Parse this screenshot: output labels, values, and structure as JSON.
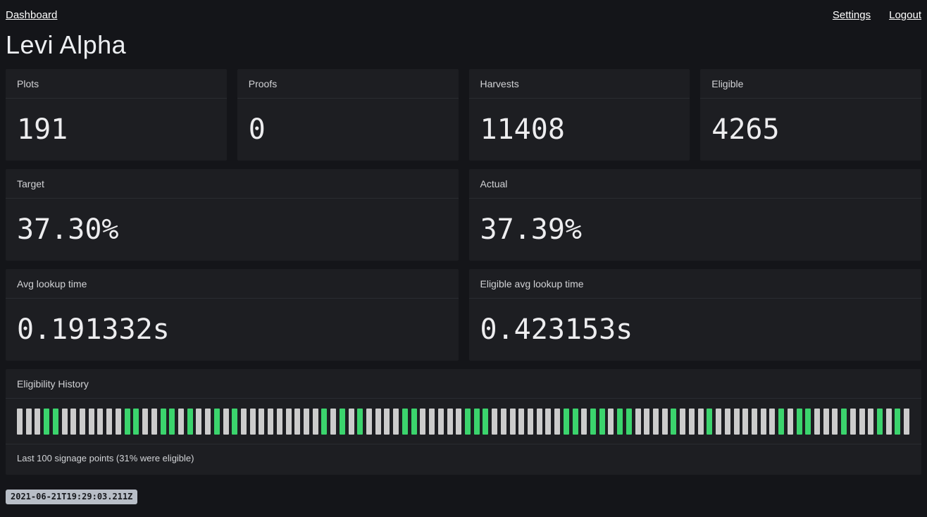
{
  "nav": {
    "dashboard_label": "Dashboard",
    "settings_label": "Settings",
    "logout_label": "Logout"
  },
  "page_title": "Levi Alpha",
  "stats": [
    {
      "label": "Plots",
      "value": "191"
    },
    {
      "label": "Proofs",
      "value": "0"
    },
    {
      "label": "Harvests",
      "value": "11408"
    },
    {
      "label": "Eligible",
      "value": "4265"
    }
  ],
  "ratios": [
    {
      "label": "Target",
      "value": "37.30%"
    },
    {
      "label": "Actual",
      "value": "37.39%"
    }
  ],
  "lookup": [
    {
      "label": "Avg lookup time",
      "value": "0.191332s"
    },
    {
      "label": "Eligible avg lookup time",
      "value": "0.423153s"
    }
  ],
  "history": {
    "title": "Eligibility History",
    "caption": "Last 100 signage points (31% were eligible)",
    "eligible_color": "#3bd46d",
    "ineligible_color": "#cccccc",
    "bars": [
      0,
      0,
      0,
      1,
      1,
      0,
      0,
      0,
      0,
      0,
      0,
      0,
      1,
      1,
      0,
      0,
      1,
      1,
      0,
      1,
      0,
      0,
      1,
      0,
      1,
      0,
      0,
      0,
      0,
      0,
      0,
      0,
      0,
      0,
      1,
      0,
      1,
      0,
      1,
      0,
      0,
      0,
      0,
      1,
      1,
      0,
      0,
      0,
      0,
      0,
      1,
      1,
      1,
      0,
      0,
      0,
      0,
      0,
      0,
      0,
      0,
      1,
      1,
      0,
      1,
      1,
      0,
      1,
      1,
      0,
      0,
      0,
      0,
      1,
      0,
      0,
      0,
      1,
      0,
      0,
      0,
      0,
      0,
      0,
      0,
      1,
      0,
      1,
      1,
      0,
      0,
      0,
      1,
      0,
      0,
      0,
      1,
      0,
      1,
      0
    ]
  },
  "chart_data": {
    "type": "bar",
    "title": "Eligibility History",
    "categories": "last 100 signage points, oldest to newest",
    "values": [
      0,
      0,
      0,
      1,
      1,
      0,
      0,
      0,
      0,
      0,
      0,
      0,
      1,
      1,
      0,
      0,
      1,
      1,
      0,
      1,
      0,
      0,
      1,
      0,
      1,
      0,
      0,
      0,
      0,
      0,
      0,
      0,
      0,
      0,
      1,
      0,
      1,
      0,
      1,
      0,
      0,
      0,
      0,
      1,
      1,
      0,
      0,
      0,
      0,
      0,
      1,
      1,
      1,
      0,
      0,
      0,
      0,
      0,
      0,
      0,
      0,
      1,
      1,
      0,
      1,
      1,
      0,
      1,
      1,
      0,
      0,
      0,
      0,
      1,
      0,
      0,
      0,
      1,
      0,
      0,
      0,
      0,
      0,
      0,
      0,
      1,
      0,
      1,
      1,
      0,
      0,
      0,
      1,
      0,
      0,
      0,
      1,
      0,
      1,
      0
    ],
    "value_meaning": "1 = eligible (green), 0 = not eligible (gray)",
    "eligible_percent": 31
  },
  "timestamp": "2021-06-21T19:29:03.211Z",
  "colors": {
    "page_bg": "#141519",
    "card_bg": "#1d1e22",
    "divider": "#2a2c31",
    "eligible_green": "#3bd46d",
    "ineligible_gray": "#cccccc",
    "badge_bg": "#b8bec7"
  }
}
